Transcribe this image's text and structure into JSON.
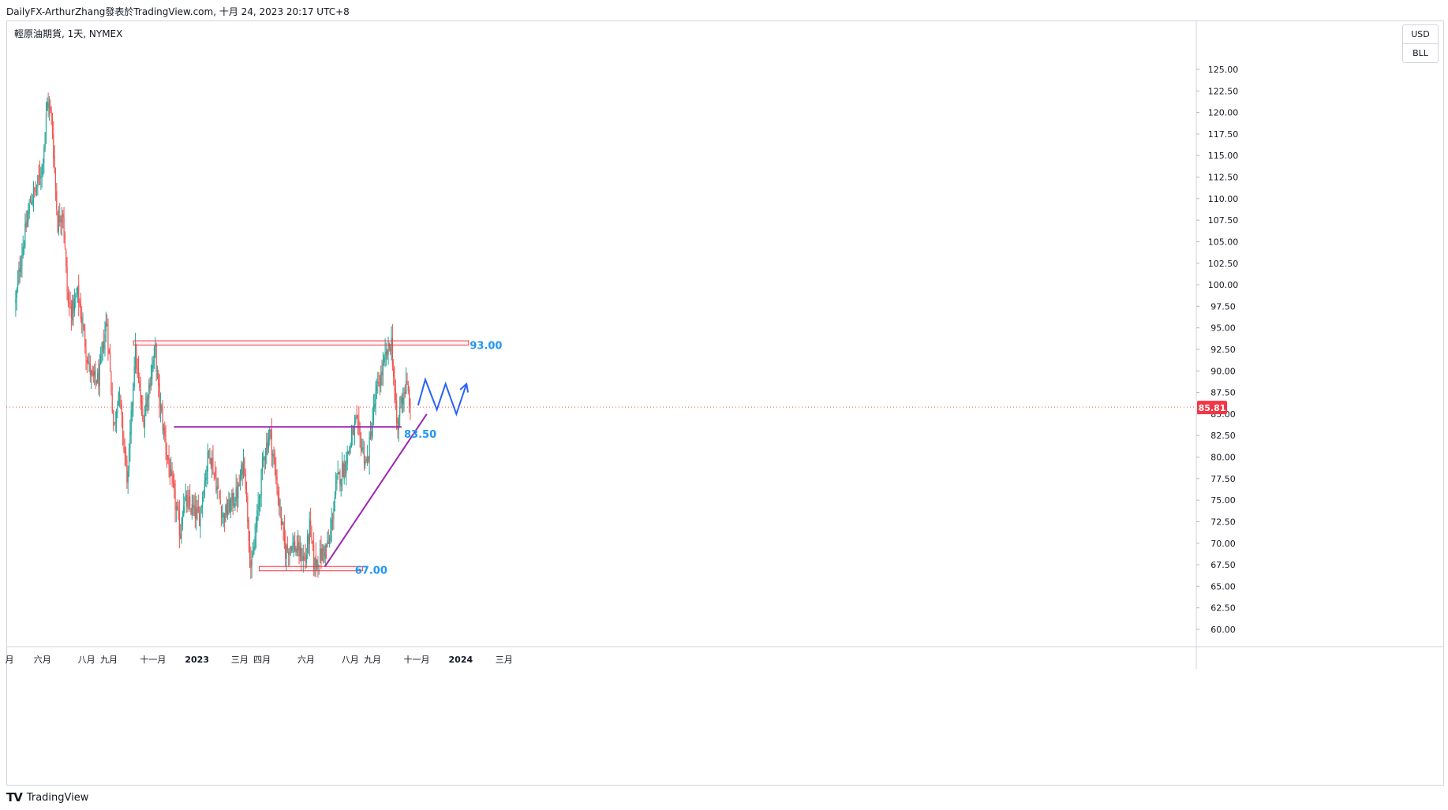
{
  "header": {
    "attribution": "DailyFX-ArthurZhang發表於TradingView.com, 十月 24, 2023 20:17 UTC+8"
  },
  "symbol": {
    "legend": "輕原油期貨, 1天, NYMEX"
  },
  "currency": {
    "unit1": "USD",
    "unit2": "BLL"
  },
  "footer": {
    "brand": "TradingView"
  },
  "colors": {
    "up": "#26a69a",
    "down": "#ef5350",
    "zone": "#f23645",
    "trendline": "#9c27b0",
    "projection": "#2962ff",
    "label": "#2196f3",
    "price_tag": "#f23645"
  },
  "chart_data": {
    "type": "candlestick",
    "title": "輕原油期貨, 1天, NYMEX",
    "ylabel": "USD BLL",
    "ylim": [
      57.5,
      129
    ],
    "y_ticks": [
      "125.00",
      "122.50",
      "120.00",
      "117.50",
      "115.00",
      "112.50",
      "110.00",
      "107.50",
      "105.00",
      "102.50",
      "100.00",
      "97.50",
      "95.00",
      "92.50",
      "90.00",
      "87.50",
      "85.00",
      "82.50",
      "80.00",
      "77.50",
      "75.00",
      "72.50",
      "70.00",
      "67.50",
      "65.00",
      "62.50",
      "60.00"
    ],
    "x_ticks": [
      "月",
      "六月",
      "八月",
      "九月",
      "十一月",
      "2023",
      "三月",
      "四月",
      "六月",
      "八月",
      "九月",
      "十一月",
      "2024",
      "三月"
    ],
    "x_tick_bold": [
      "2023",
      "2024"
    ],
    "last_price": 85.81,
    "last_price_label": "85.81",
    "path_points": [
      {
        "date": "2022-04-25",
        "price": 98
      },
      {
        "date": "2022-05-02",
        "price": 103
      },
      {
        "date": "2022-05-16",
        "price": 110
      },
      {
        "date": "2022-05-23",
        "price": 111
      },
      {
        "date": "2022-06-01",
        "price": 114
      },
      {
        "date": "2022-06-08",
        "price": 121.5
      },
      {
        "date": "2022-06-14",
        "price": 119
      },
      {
        "date": "2022-06-22",
        "price": 107
      },
      {
        "date": "2022-06-29",
        "price": 109
      },
      {
        "date": "2022-07-06",
        "price": 98
      },
      {
        "date": "2022-07-12",
        "price": 97
      },
      {
        "date": "2022-07-20",
        "price": 99
      },
      {
        "date": "2022-08-03",
        "price": 91
      },
      {
        "date": "2022-08-09",
        "price": 89
      },
      {
        "date": "2022-08-18",
        "price": 89
      },
      {
        "date": "2022-08-29",
        "price": 96
      },
      {
        "date": "2022-09-08",
        "price": 83
      },
      {
        "date": "2022-09-14",
        "price": 88
      },
      {
        "date": "2022-09-27",
        "price": 77
      },
      {
        "date": "2022-10-07",
        "price": 92.5
      },
      {
        "date": "2022-10-18",
        "price": 84
      },
      {
        "date": "2022-11-04",
        "price": 92.5
      },
      {
        "date": "2022-11-09",
        "price": 87
      },
      {
        "date": "2022-11-21",
        "price": 80
      },
      {
        "date": "2022-12-09",
        "price": 71
      },
      {
        "date": "2022-12-13",
        "price": 75
      },
      {
        "date": "2023-01-04",
        "price": 73
      },
      {
        "date": "2023-01-18",
        "price": 81
      },
      {
        "date": "2023-02-06",
        "price": 73
      },
      {
        "date": "2023-02-27",
        "price": 76
      },
      {
        "date": "2023-03-07",
        "price": 80
      },
      {
        "date": "2023-03-17",
        "price": 66.5
      },
      {
        "date": "2023-04-03",
        "price": 80
      },
      {
        "date": "2023-04-12",
        "price": 83
      },
      {
        "date": "2023-05-03",
        "price": 69
      },
      {
        "date": "2023-05-12",
        "price": 70
      },
      {
        "date": "2023-05-31",
        "price": 68
      },
      {
        "date": "2023-06-06",
        "price": 72
      },
      {
        "date": "2023-06-12",
        "price": 67.5
      },
      {
        "date": "2023-07-03",
        "price": 70
      },
      {
        "date": "2023-07-13",
        "price": 77
      },
      {
        "date": "2023-07-24",
        "price": 79
      },
      {
        "date": "2023-08-09",
        "price": 84
      },
      {
        "date": "2023-08-24",
        "price": 79
      },
      {
        "date": "2023-09-05",
        "price": 87
      },
      {
        "date": "2023-09-19",
        "price": 91.5
      },
      {
        "date": "2023-09-27",
        "price": 93.5
      },
      {
        "date": "2023-10-04",
        "price": 84
      },
      {
        "date": "2023-10-06",
        "price": 82.8
      },
      {
        "date": "2023-10-09",
        "price": 86.4
      },
      {
        "date": "2023-10-18",
        "price": 88.3
      },
      {
        "date": "2023-10-24",
        "price": 85.81
      }
    ],
    "zones": [
      {
        "name": "resistance",
        "from": "2022-10-05",
        "to": "2024-01-12",
        "low": 93.0,
        "high": 93.5
      },
      {
        "name": "support",
        "from": "2023-03-28",
        "to": "2023-08-18",
        "low": 66.8,
        "high": 67.3
      }
    ],
    "lines": [
      {
        "name": "horizontal",
        "from": {
          "date": "2022-11-30",
          "price": 83.5
        },
        "to": {
          "date": "2023-10-11",
          "price": 83.5
        }
      },
      {
        "name": "trendline",
        "from": {
          "date": "2023-06-27",
          "price": 67.3
        },
        "to": {
          "date": "2023-11-15",
          "price": 85.0
        }
      }
    ],
    "projection": [
      {
        "date": "2023-11-03",
        "price": 86
      },
      {
        "date": "2023-11-13",
        "price": 89
      },
      {
        "date": "2023-11-29",
        "price": 85.5
      },
      {
        "date": "2023-12-11",
        "price": 88.5
      },
      {
        "date": "2023-12-26",
        "price": 85
      },
      {
        "date": "2024-01-09",
        "price": 88.5
      }
    ],
    "annotations": [
      {
        "text": "93.00",
        "date": "2024-02-05",
        "price": 93.0
      },
      {
        "text": "83.50",
        "date": "2023-11-06",
        "price": 82.7
      },
      {
        "text": "67.00",
        "date": "2023-08-30",
        "price": 66.9
      }
    ]
  }
}
